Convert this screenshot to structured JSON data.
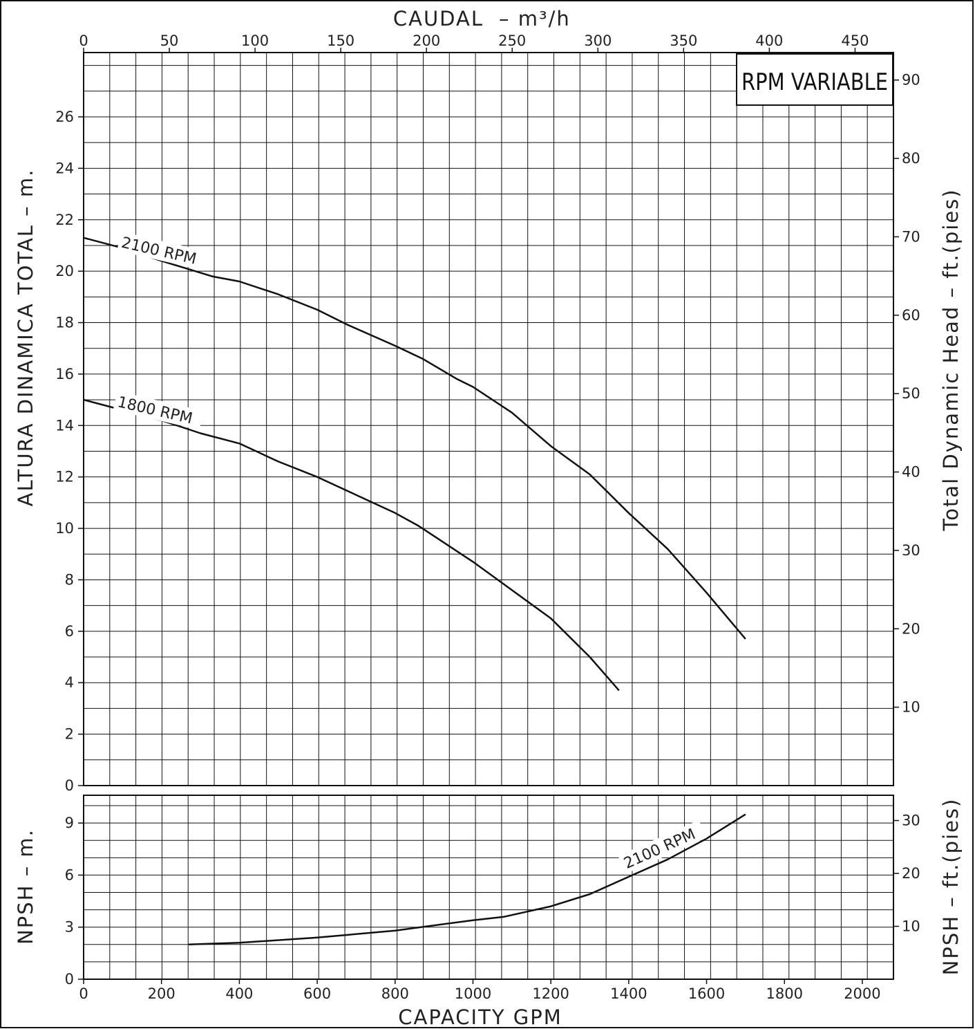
{
  "chart_data": [
    {
      "type": "line",
      "title": "RPM VARIABLE",
      "xlabel_bottom": "CAPACITY GPM",
      "xlabel_top": "CAUDAL",
      "xlabel_top_unit": "– m³/h",
      "ylabel_left": "ALTURA DINAMICA TOTAL – m.",
      "ylabel_right": "Total Dynamic Head – ft.(pies)",
      "xlim": [
        0,
        2080
      ],
      "ylim": [
        0,
        28.5
      ],
      "x_ticks_bottom": [
        "0",
        "200",
        "400",
        "600",
        "800",
        "1000",
        "1200",
        "1400",
        "1600",
        "1800",
        "2000"
      ],
      "x_ticks_top": [
        "0",
        "50",
        "100",
        "150",
        "200",
        "250",
        "300",
        "350",
        "400",
        "450"
      ],
      "y_ticks_left": [
        "0",
        "2",
        "4",
        "6",
        "8",
        "10",
        "12",
        "14",
        "16",
        "18",
        "20",
        "22",
        "24",
        "26"
      ],
      "y_ticks_right": [
        "10",
        "20",
        "30",
        "40",
        "50",
        "60",
        "70",
        "80",
        "90"
      ],
      "grid": true,
      "series": [
        {
          "name": "2100 RPM",
          "x": [
            0,
            100,
            200,
            330,
            400,
            500,
            600,
            680,
            800,
            870,
            960,
            1000,
            1100,
            1200,
            1300,
            1400,
            1500,
            1600,
            1700
          ],
          "values": [
            21.3,
            20.9,
            20.4,
            19.8,
            19.6,
            19.1,
            18.5,
            17.9,
            17.1,
            16.6,
            15.8,
            15.5,
            14.5,
            13.2,
            12.1,
            10.6,
            9.2,
            7.5,
            5.7
          ]
        },
        {
          "name": "1800 RPM",
          "x": [
            0,
            100,
            200,
            300,
            400,
            500,
            600,
            700,
            800,
            860,
            900,
            1000,
            1100,
            1200,
            1300,
            1375
          ],
          "values": [
            15.0,
            14.6,
            14.2,
            13.7,
            13.3,
            12.6,
            12.0,
            11.3,
            10.6,
            10.1,
            9.7,
            8.7,
            7.6,
            6.5,
            5.0,
            3.7
          ]
        }
      ]
    },
    {
      "type": "line",
      "xlabel": "CAPACITY GPM",
      "ylabel_left": "NPSH – m.",
      "ylabel_right": "NPSH – ft.(pies)",
      "xlim": [
        0,
        2080
      ],
      "ylim": [
        0,
        10.6
      ],
      "y_ticks_left": [
        "0",
        "3",
        "6",
        "9"
      ],
      "y_ticks_right": [
        "10",
        "20",
        "30"
      ],
      "grid": true,
      "series": [
        {
          "name": "2100 RPM",
          "x": [
            270,
            400,
            600,
            800,
            1000,
            1080,
            1200,
            1300,
            1400,
            1500,
            1600,
            1700
          ],
          "values": [
            2.0,
            2.1,
            2.4,
            2.8,
            3.4,
            3.6,
            4.2,
            4.9,
            5.9,
            6.9,
            8.1,
            9.5
          ]
        }
      ]
    }
  ]
}
